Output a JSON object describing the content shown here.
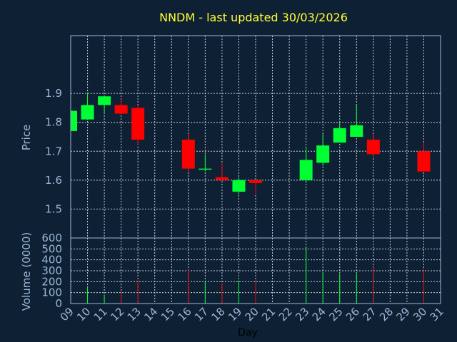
{
  "chart_data": {
    "type": "candlestick",
    "title": "NNDM - last updated 30/03/2026",
    "xlabel": "Day",
    "price_panel": {
      "ylabel": "Price",
      "ylim": [
        1.4,
        2.1
      ],
      "yticks": [
        "1.5",
        "1.6",
        "1.7",
        "1.8",
        "1.9"
      ],
      "grid": true
    },
    "volume_panel": {
      "ylabel": "Volume (0000)",
      "ylim": [
        0,
        600
      ],
      "yticks": [
        "0",
        "100",
        "200",
        "300",
        "400",
        "500",
        "600"
      ],
      "grid": true
    },
    "x_ticks": [
      "09",
      "10",
      "11",
      "12",
      "13",
      "14",
      "15",
      "16",
      "17",
      "18",
      "19",
      "20",
      "21",
      "22",
      "23",
      "24",
      "25",
      "26",
      "27",
      "28",
      "29",
      "30",
      "31"
    ],
    "x_range": [
      9,
      31
    ],
    "candles": [
      {
        "day": 9,
        "open": 1.77,
        "close": 1.84,
        "high": 1.84,
        "low": 1.77,
        "volume": 0
      },
      {
        "day": 10,
        "open": 1.81,
        "close": 1.86,
        "high": 1.9,
        "low": 1.81,
        "volume": 150
      },
      {
        "day": 11,
        "open": 1.86,
        "close": 1.89,
        "high": 1.89,
        "low": 1.83,
        "volume": 80
      },
      {
        "day": 12,
        "open": 1.86,
        "close": 1.83,
        "high": 1.88,
        "low": 1.83,
        "volume": 110
      },
      {
        "day": 13,
        "open": 1.85,
        "close": 1.74,
        "high": 1.86,
        "low": 1.72,
        "volume": 210
      },
      {
        "day": 16,
        "open": 1.74,
        "close": 1.64,
        "high": 1.76,
        "low": 1.63,
        "volume": 310
      },
      {
        "day": 17,
        "open": 1.64,
        "close": 1.64,
        "high": 1.69,
        "low": 1.63,
        "volume": 200
      },
      {
        "day": 18,
        "open": 1.61,
        "close": 1.6,
        "high": 1.66,
        "low": 1.6,
        "volume": 180
      },
      {
        "day": 19,
        "open": 1.56,
        "close": 1.6,
        "high": 1.61,
        "low": 1.55,
        "volume": 210
      },
      {
        "day": 20,
        "open": 1.6,
        "close": 1.59,
        "high": 1.6,
        "low": 1.55,
        "volume": 200
      },
      {
        "day": 23,
        "open": 1.6,
        "close": 1.67,
        "high": 1.71,
        "low": 1.59,
        "volume": 510
      },
      {
        "day": 24,
        "open": 1.66,
        "close": 1.72,
        "high": 1.76,
        "low": 1.65,
        "volume": 290
      },
      {
        "day": 25,
        "open": 1.73,
        "close": 1.78,
        "high": 1.8,
        "low": 1.73,
        "volume": 270
      },
      {
        "day": 26,
        "open": 1.75,
        "close": 1.79,
        "high": 1.86,
        "low": 1.75,
        "volume": 270
      },
      {
        "day": 27,
        "open": 1.74,
        "close": 1.69,
        "high": 1.76,
        "low": 1.68,
        "volume": 330
      },
      {
        "day": 30,
        "open": 1.7,
        "close": 1.63,
        "high": 1.73,
        "low": 1.63,
        "volume": 320
      }
    ],
    "colors": {
      "background": "#0e2033",
      "up": "#00ff33",
      "down": "#ff0000",
      "grid": "#c8d0dc",
      "axis": "#9ab8d8",
      "title": "#ffff33",
      "xlabel": "#000000"
    }
  }
}
